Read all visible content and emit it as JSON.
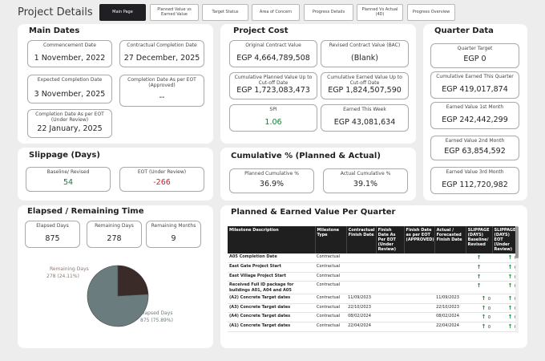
{
  "page_title": "Project Details",
  "tabs": [
    {
      "label": "Main Page"
    },
    {
      "label": "Planned Value vs Earned Value"
    },
    {
      "label": "Target Status"
    },
    {
      "label": "Area of Concern"
    },
    {
      "label": "Progress Details"
    },
    {
      "label": "Planned Vs Actual (4D)"
    },
    {
      "label": "Progress Overview"
    }
  ],
  "main_dates": {
    "title": "Main Dates",
    "commencement": {
      "label": "Commencement Date",
      "value": "1 November, 2022"
    },
    "contractual_completion": {
      "label": "Contractual Completion Date",
      "value": "27 December, 2025"
    },
    "expected_completion": {
      "label": "Expected Completion Date",
      "value": "3 November, 2025"
    },
    "completion_eot_approved": {
      "label": "Completion Date As per EOT (Approved)",
      "value": "--"
    },
    "completion_eot_review": {
      "label": "Completion Date As per EOT (Under Review)",
      "value": "22 January, 2025"
    }
  },
  "project_cost": {
    "title": "Project Cost",
    "original_contract": {
      "label": "Original Contract Value",
      "value": "EGP 4,664,789,508"
    },
    "revised_contract": {
      "label": "Revised Contract Value (BAC)",
      "value": "(Blank)"
    },
    "cum_planned": {
      "label": "Cumulative Planned Value Up to Cut-off Date",
      "value": "EGP 1,723,083,473"
    },
    "cum_earned": {
      "label": "Cumulative Earned Value Up to Cut-off Date",
      "value": "EGP 1,824,507,590"
    },
    "spi": {
      "label": "SPI",
      "value": "1.06"
    },
    "earned_week": {
      "label": "Earned This Week",
      "value": "EGP 43,081,634"
    }
  },
  "quarter_data": {
    "title": "Quarter Data",
    "quarter_target": {
      "label": "Quarter Target",
      "value": "EGP 0"
    },
    "cum_earned_quarter": {
      "label": "Cumulative Earned This Quarter",
      "value": "EGP 419,017,874"
    },
    "earned_1st": {
      "label": "Earned Value 1st Month",
      "value": "EGP 242,442,299"
    },
    "earned_2nd": {
      "label": "Earned Value 2nd Month",
      "value": "EGP 63,854,592"
    },
    "earned_3rd": {
      "label": "Earned Value 3rd Month",
      "value": "EGP 112,720,982"
    }
  },
  "slippage": {
    "title": "Slippage (Days)",
    "baseline": {
      "label": "Baseline/ Revised",
      "value": "54"
    },
    "eot": {
      "label": "EOT (Under Review)",
      "value": "-266"
    }
  },
  "cumulative_pct": {
    "title": "Cumulative % (Planned &  Actual)",
    "planned": {
      "label": "Planned Cumulative %",
      "value": "36.9%"
    },
    "actual": {
      "label": "Actual Cumulative %",
      "value": "39.1%"
    }
  },
  "elapsed": {
    "title": "Elapsed / Remaining Time",
    "elapsed_days": {
      "label": "Elapsed Days",
      "value": "875"
    },
    "remaining_days": {
      "label": "Remaining Days",
      "value": "278"
    },
    "remaining_months": {
      "label": "Remaining Months",
      "value": "9"
    }
  },
  "chart_data": {
    "type": "pie",
    "title": "",
    "slices": [
      {
        "name": "Elapsed Days",
        "value": 875,
        "percent_label": "875 (75.89%)",
        "color": "#6b7c7e"
      },
      {
        "name": "Remaining Days",
        "value": 278,
        "percent_label": "278 (24.11%)",
        "color": "#3a2a28"
      }
    ]
  },
  "pev_table": {
    "title": "Planned & Earned Value Per Quarter",
    "columns": [
      "Milestone Description",
      "Milestone Type",
      "Contractual Finish Date",
      "Finish Date As Per EOT (Under Review)",
      "Finish Date as per EOT (APPROVED)",
      "Actual / Forecasted Finish Date",
      "SLIPPAGE (DAYS) Baseline/ Revised",
      "SLIPPAGE (DAYS) EOT (Under Review)"
    ],
    "rows": [
      [
        "A05 Completion Date",
        "Contractual",
        "",
        "",
        "",
        "",
        "",
        "0"
      ],
      [
        "East Gate Project Start",
        "Contractual",
        "",
        "",
        "",
        "",
        "",
        "0"
      ],
      [
        "East Village Project Start",
        "Contractual",
        "",
        "",
        "",
        "",
        "",
        "0"
      ],
      [
        "Received Full ID package for buildings A01, A04 and A05",
        "Contractual",
        "",
        "",
        "",
        "",
        "",
        "0"
      ],
      [
        "(A2) Concrete Target dates",
        "Contractual",
        "11/09/2023",
        "",
        "",
        "11/09/2023",
        "0",
        "0"
      ],
      [
        "(A3) Concrete Target dates",
        "Contractual",
        "22/10/2023",
        "",
        "",
        "22/10/2023",
        "0",
        "0"
      ],
      [
        "(A4) Concrete Target dates",
        "Contractual",
        "08/02/2024",
        "",
        "",
        "08/02/2024",
        "0",
        "0"
      ],
      [
        "(A1) Concrete Target dates",
        "Contractual",
        "22/04/2024",
        "",
        "",
        "22/04/2024",
        "0",
        "0"
      ]
    ]
  },
  "colors": {
    "accent_dark": "#1f1f24",
    "positive": "#1a7a3c",
    "negative": "#c0262d"
  }
}
